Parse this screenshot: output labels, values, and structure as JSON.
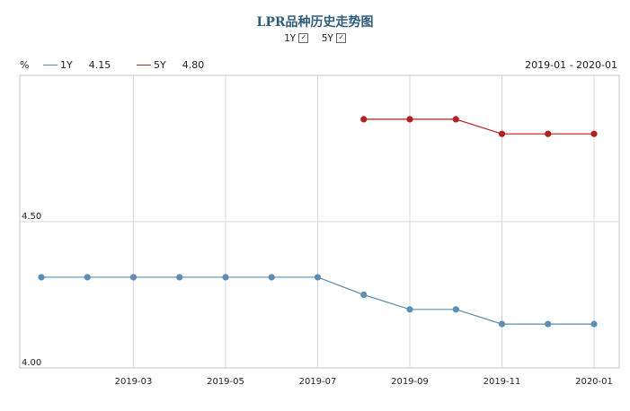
{
  "title": "LPR品种历史走势图",
  "toggles": [
    {
      "label": "1Y",
      "checked": true
    },
    {
      "label": "5Y",
      "checked": true
    }
  ],
  "header": {
    "unit": "%",
    "range": "2019-01 - 2020-01"
  },
  "legend": [
    {
      "name": "1Y",
      "value": "4.15",
      "color": "#5b8db5"
    },
    {
      "name": "5Y",
      "value": "4.80",
      "color": "#b32020"
    }
  ],
  "chart_data": {
    "type": "line",
    "x": [
      "2019-01",
      "2019-02",
      "2019-03",
      "2019-04",
      "2019-05",
      "2019-06",
      "2019-07",
      "2019-08",
      "2019-09",
      "2019-10",
      "2019-11",
      "2019-12",
      "2020-01"
    ],
    "x_tick_labels": [
      "2019-03",
      "2019-05",
      "2019-07",
      "2019-09",
      "2019-11",
      "2020-01"
    ],
    "y_tick_labels": [
      "4.50",
      "4.00"
    ],
    "ylim": [
      4.0,
      5.0
    ],
    "grid": true,
    "series": [
      {
        "name": "1Y",
        "color": "#5b8db5",
        "values": [
          4.31,
          4.31,
          4.31,
          4.31,
          4.31,
          4.31,
          4.31,
          4.25,
          4.2,
          4.2,
          4.15,
          4.15,
          4.15
        ]
      },
      {
        "name": "5Y",
        "color": "#b32020",
        "values": [
          null,
          null,
          null,
          null,
          null,
          null,
          null,
          4.85,
          4.85,
          4.85,
          4.8,
          4.8,
          4.8
        ]
      }
    ]
  }
}
